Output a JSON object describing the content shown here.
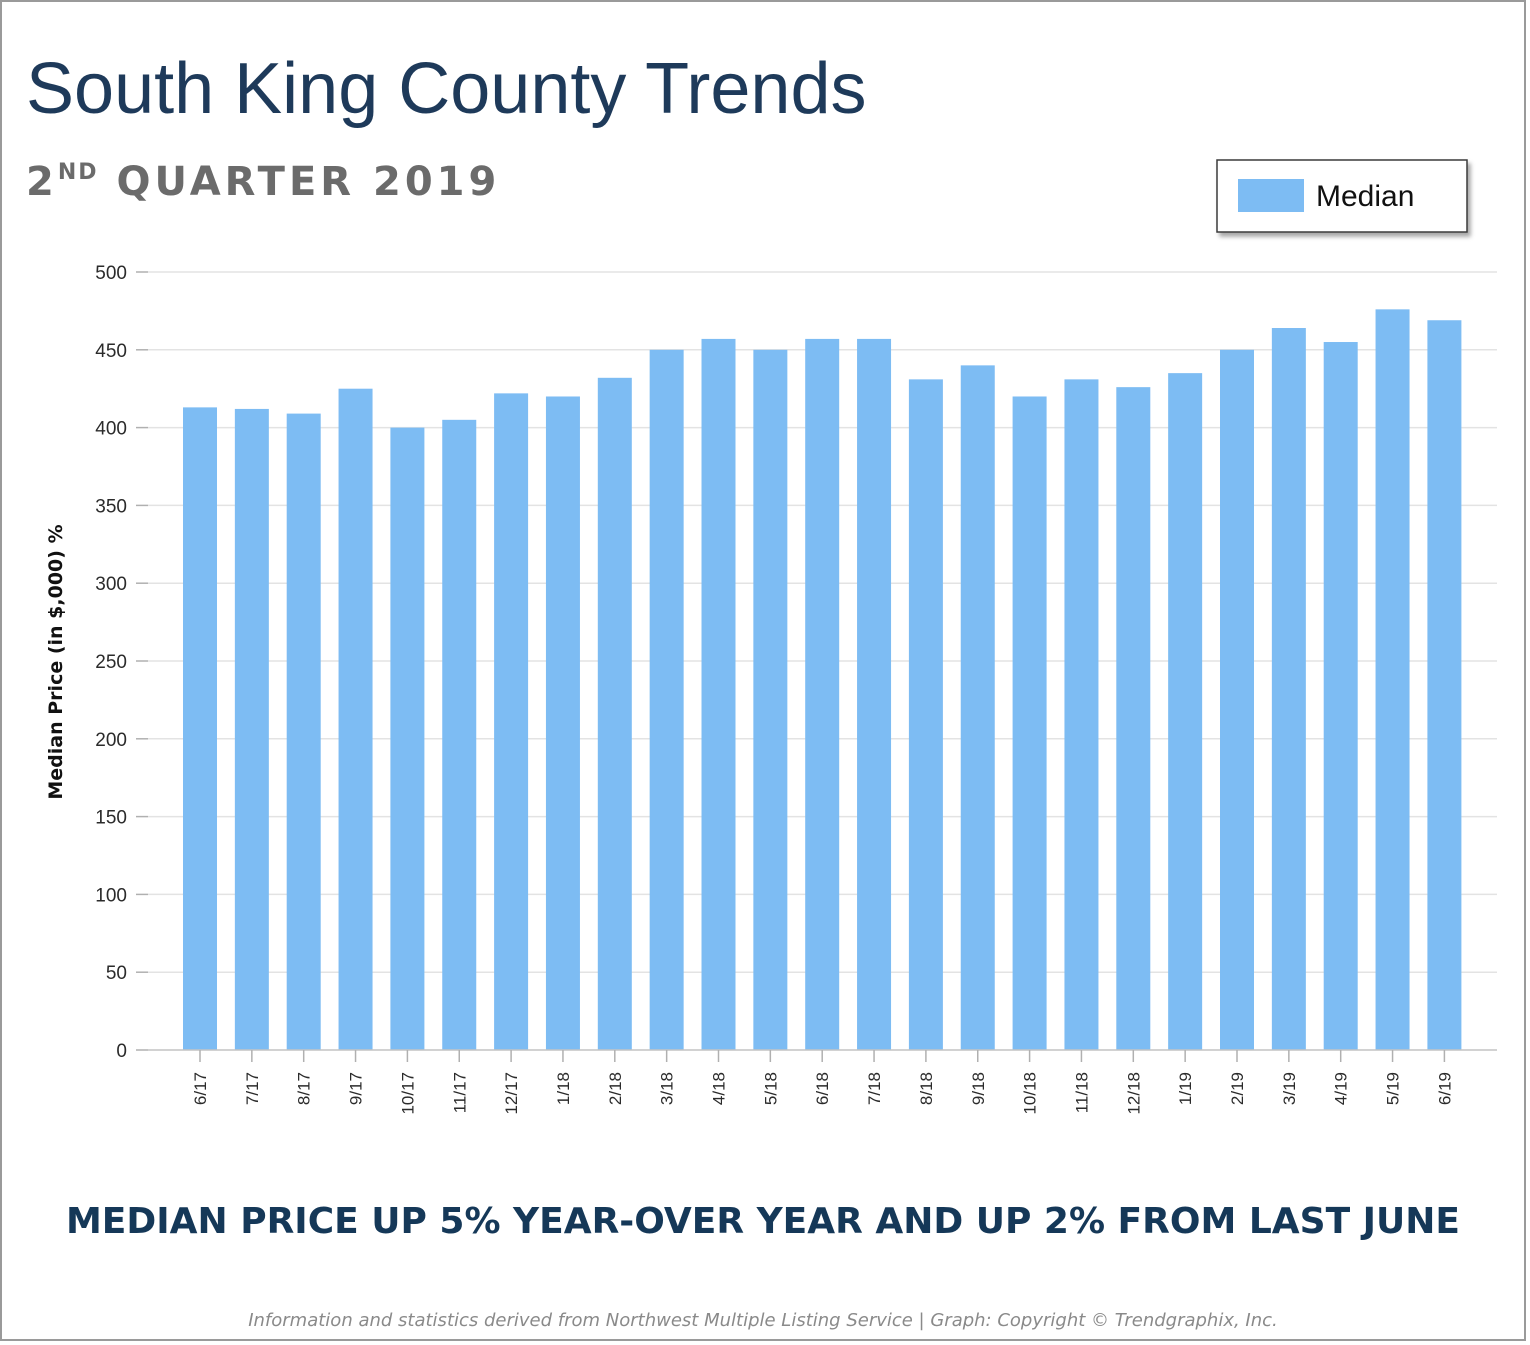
{
  "header": {
    "title": "South King County Trends",
    "subtitle_number": "2",
    "subtitle_suffix": "ND",
    "subtitle_rest": " QUARTER 2019"
  },
  "chart_data": {
    "type": "bar",
    "ylabel": "Median Price (in $,000) %",
    "ylim": [
      0,
      500
    ],
    "yticks": [
      0,
      50,
      100,
      150,
      200,
      250,
      300,
      350,
      400,
      450,
      500
    ],
    "grid": true,
    "legend_position": "top-right",
    "categories": [
      "6/17",
      "7/17",
      "8/17",
      "9/17",
      "10/17",
      "11/17",
      "12/17",
      "1/18",
      "2/18",
      "3/18",
      "4/18",
      "5/18",
      "6/18",
      "7/18",
      "8/18",
      "9/18",
      "10/18",
      "11/18",
      "12/18",
      "1/19",
      "2/19",
      "3/19",
      "4/19",
      "5/19",
      "6/19"
    ],
    "series": [
      {
        "name": "Median",
        "color": "#7dbcf3",
        "values": [
          413,
          412,
          409,
          425,
          400,
          405,
          422,
          420,
          432,
          450,
          457,
          450,
          457,
          457,
          431,
          440,
          420,
          431,
          426,
          435,
          450,
          464,
          455,
          476,
          469
        ]
      }
    ]
  },
  "headline": "MEDIAN PRICE UP 5% YEAR-OVER YEAR AND UP 2% FROM LAST JUNE",
  "footnote": "Information and statistics derived from Northwest Multiple Listing Service  |  Graph: Copyright © Trendgraphix, Inc."
}
